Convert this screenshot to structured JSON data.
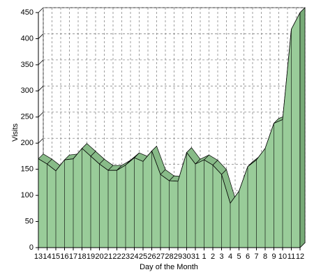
{
  "chart_data": {
    "type": "area3d",
    "x_label": "Day of the Month",
    "y_label": "Visits",
    "categories": [
      "13",
      "14",
      "15",
      "16",
      "17",
      "18",
      "19",
      "20",
      "21",
      "22",
      "23",
      "24",
      "25",
      "26",
      "27",
      "28",
      "29",
      "30",
      "31",
      "1",
      "2",
      "3",
      "4",
      "5",
      "6",
      "7",
      "8",
      "9",
      "10",
      "11",
      "12"
    ],
    "values": [
      170,
      160,
      147,
      168,
      170,
      190,
      175,
      160,
      148,
      148,
      158,
      172,
      165,
      185,
      140,
      128,
      127,
      182,
      160,
      168,
      158,
      140,
      85,
      108,
      155,
      168,
      190,
      238,
      245,
      418,
      450
    ],
    "color": "#99cc99",
    "ylim": [
      0,
      450
    ],
    "yticks": [
      0,
      50,
      100,
      150,
      200,
      250,
      300,
      350,
      400,
      450
    ],
    "grid": true
  }
}
